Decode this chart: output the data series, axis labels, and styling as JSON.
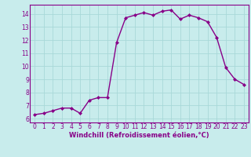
{
  "x": [
    0,
    1,
    2,
    3,
    4,
    5,
    6,
    7,
    8,
    9,
    10,
    11,
    12,
    13,
    14,
    15,
    16,
    17,
    18,
    19,
    20,
    21,
    22,
    23
  ],
  "y": [
    6.3,
    6.4,
    6.6,
    6.8,
    6.8,
    6.4,
    7.4,
    7.6,
    7.6,
    11.8,
    13.7,
    13.9,
    14.1,
    13.9,
    14.2,
    14.3,
    13.6,
    13.9,
    13.7,
    13.4,
    12.2,
    9.9,
    9.0,
    8.6
  ],
  "line_color": "#880088",
  "marker": "D",
  "marker_size": 2.0,
  "xlabel": "Windchill (Refroidissement éolien,°C)",
  "xlabel_fontsize": 6.0,
  "ytick_labels": [
    "6",
    "7",
    "8",
    "9",
    "10",
    "11",
    "12",
    "13",
    "14"
  ],
  "ytick_vals": [
    6,
    7,
    8,
    9,
    10,
    11,
    12,
    13,
    14
  ],
  "xlim": [
    -0.5,
    23.5
  ],
  "ylim": [
    5.7,
    14.7
  ],
  "bg_color": "#c8ecec",
  "grid_color": "#a8d8d8",
  "tick_color": "#880088",
  "tick_fontsize": 5.5,
  "line_width": 1.0,
  "spine_color": "#880088"
}
